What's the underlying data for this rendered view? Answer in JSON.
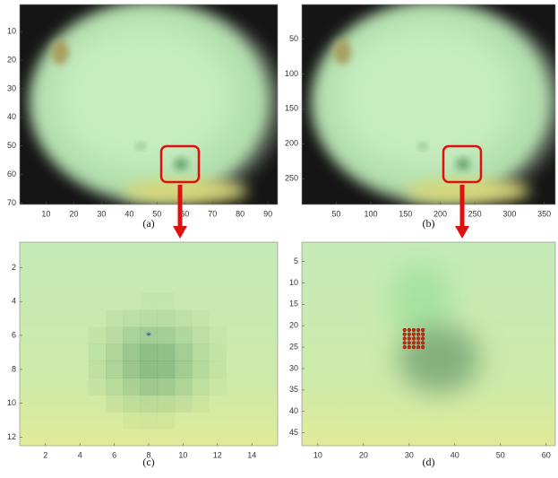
{
  "panels": [
    {
      "caption": "(a)",
      "xlim": [
        0.5,
        93.5
      ],
      "ylim": [
        0.5,
        70.5
      ],
      "xticks": [
        10,
        20,
        30,
        40,
        50,
        60,
        70,
        80,
        90
      ],
      "yticks": [
        10,
        20,
        30,
        40,
        50,
        60,
        70
      ]
    },
    {
      "caption": "(b)",
      "xlim": [
        0.5,
        366
      ],
      "ylim": [
        0.5,
        287
      ],
      "xticks": [
        50,
        100,
        150,
        200,
        250,
        300,
        350
      ],
      "yticks": [
        50,
        100,
        150,
        200,
        250
      ]
    },
    {
      "caption": "(c)",
      "xlim": [
        0.5,
        15.5
      ],
      "ylim": [
        0.5,
        12.5
      ],
      "xticks": [
        2,
        4,
        6,
        8,
        10,
        12,
        14
      ],
      "yticks": [
        2,
        4,
        6,
        8,
        10,
        12
      ],
      "marker": {
        "x": [
          8
        ],
        "y": [
          6
        ],
        "color": "#1f2fd0"
      }
    },
    {
      "caption": "(d)",
      "xlim": [
        6.5,
        62
      ],
      "ylim": [
        0.5,
        48
      ],
      "xticks": [
        10,
        20,
        30,
        40,
        50,
        60
      ],
      "yticks": [
        5,
        10,
        15,
        20,
        25,
        30,
        35,
        40,
        45
      ],
      "marker": {
        "x": [
          29,
          30,
          31,
          32,
          33
        ],
        "y": [
          21,
          22,
          23,
          24,
          25
        ],
        "color": "#d02a10"
      }
    }
  ]
}
